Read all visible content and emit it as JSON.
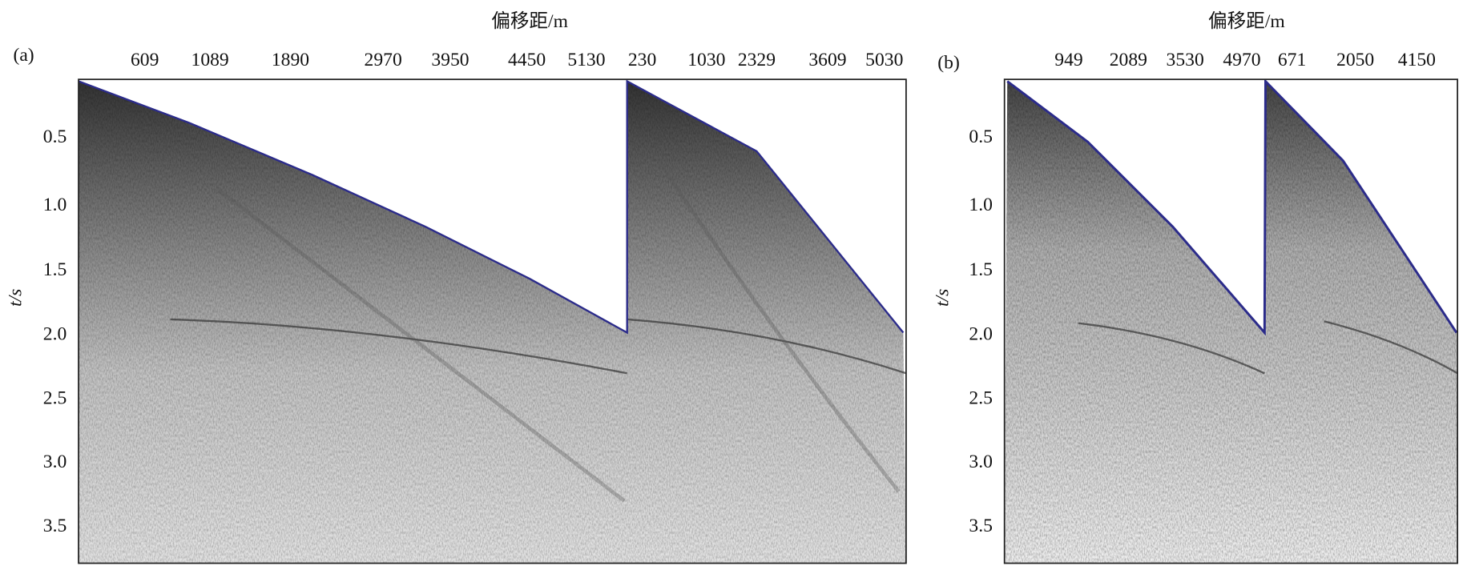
{
  "figure": {
    "panels": [
      {
        "label": "(a)",
        "x_title": "偏移距/m",
        "y_title": "t/s",
        "x_ticks": [
          "609",
          "1089",
          "1890",
          "2970",
          "3950",
          "4450",
          "5130",
          "230",
          "1030",
          "2329",
          "3609",
          "5030"
        ],
        "y_ticks": [
          "0.5",
          "1.0",
          "1.5",
          "2.0",
          "2.5",
          "3.0",
          "3.5"
        ]
      },
      {
        "label": "(b)",
        "x_title": "偏移距/m",
        "y_title": "t/s",
        "x_ticks": [
          "949",
          "2089",
          "3530",
          "4970",
          "671",
          "2050",
          "4150"
        ],
        "y_ticks": [
          "0.5",
          "1.0",
          "1.5",
          "2.0",
          "2.5",
          "3.0",
          "3.5"
        ]
      }
    ]
  }
}
